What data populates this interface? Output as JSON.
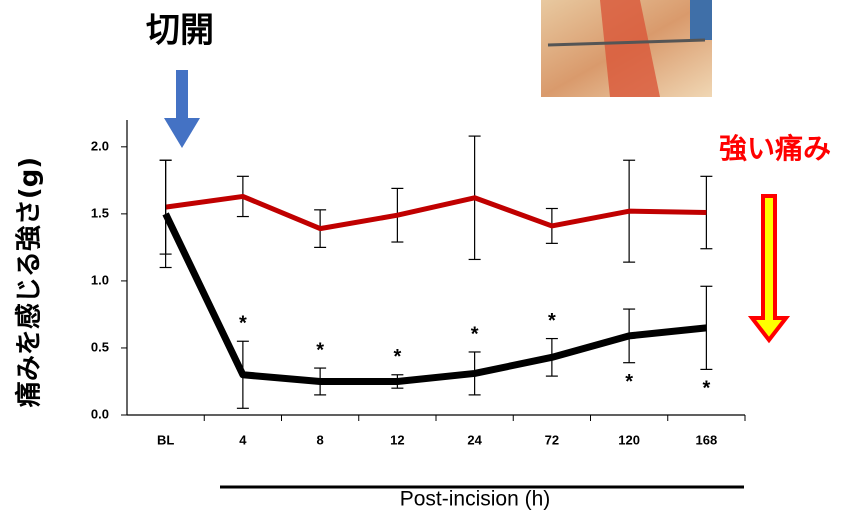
{
  "chart_data": {
    "type": "line",
    "title": "切開",
    "annotation": "強い痛み",
    "y_label": "痛みを感じる強さ(g)",
    "x_label": "Post-incision (h)",
    "categories": [
      "BL",
      "4",
      "8",
      "12",
      "24",
      "72",
      "120",
      "168"
    ],
    "series": [
      {
        "color": "#c00000",
        "values": [
          1.55,
          1.63,
          1.39,
          1.49,
          1.62,
          1.41,
          1.52,
          1.51
        ],
        "errors": [
          0.35,
          0.15,
          0.14,
          0.2,
          0.46,
          0.13,
          0.38,
          0.27
        ]
      },
      {
        "color": "#000000",
        "values": [
          1.5,
          0.3,
          0.25,
          0.25,
          0.31,
          0.43,
          0.59,
          0.65
        ],
        "errors": [
          0.4,
          0.25,
          0.1,
          0.05,
          0.16,
          0.14,
          0.2,
          0.31
        ],
        "marks": [
          null,
          {
            "text": "*",
            "position": "above"
          },
          {
            "text": "*",
            "position": "above"
          },
          {
            "text": "*",
            "position": "above"
          },
          {
            "text": "*",
            "position": "above"
          },
          {
            "text": "*",
            "position": "above"
          },
          {
            "text": "*",
            "position": "below"
          },
          {
            "text": "*",
            "position": "below"
          }
        ]
      }
    ],
    "ylim": [
      0,
      2.2
    ],
    "yticks": [
      {
        "value": 0,
        "label": "0.0"
      },
      0.5,
      {
        "value": 1,
        "label": "1.0"
      },
      1.5,
      {
        "value": 2,
        "label": "2.0"
      }
    ]
  }
}
